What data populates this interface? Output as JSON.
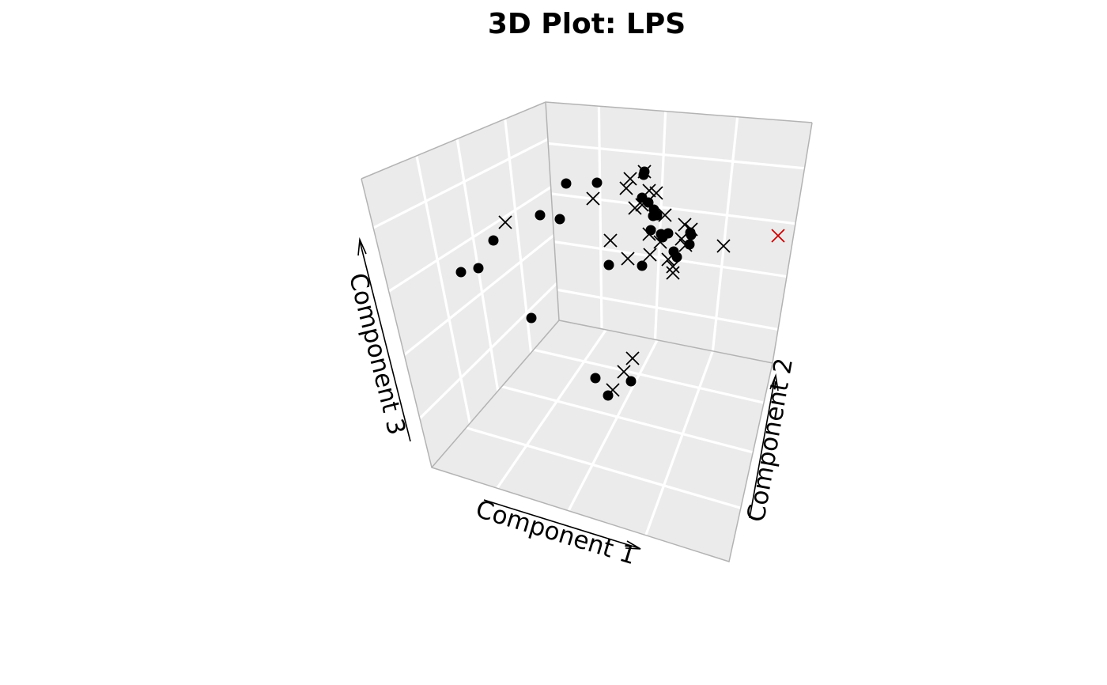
{
  "chart_data": {
    "type": "scatter",
    "projection": "3d",
    "title": "3D Plot: LPS",
    "xlabel": "Component 1",
    "ylabel": "Component 2",
    "zlabel": "Component 3",
    "grid": true,
    "colors": {
      "pane": "#ebebeb",
      "grid": "#ffffff",
      "circle": "#000000",
      "cross": "#000000",
      "highlight": "#cc0000"
    },
    "series": [
      {
        "marker": "circle",
        "color": "#000000",
        "points": [
          [
            716,
            232
          ],
          [
            755,
            231
          ],
          [
            683,
            272
          ],
          [
            708,
            277
          ],
          [
            624,
            304
          ],
          [
            583,
            344
          ],
          [
            605,
            339
          ],
          [
            672,
            402
          ],
          [
            770,
            335
          ],
          [
            812,
            336
          ],
          [
            815,
            217
          ],
          [
            814,
            221
          ],
          [
            812,
            250
          ],
          [
            820,
            256
          ],
          [
            827,
            265
          ],
          [
            826,
            273
          ],
          [
            831,
            272
          ],
          [
            823,
            291
          ],
          [
            836,
            296
          ],
          [
            845,
            295
          ],
          [
            838,
            300
          ],
          [
            852,
            318
          ],
          [
            856,
            325
          ],
          [
            873,
            294
          ],
          [
            874,
            297
          ],
          [
            872,
            309
          ],
          [
            753,
            478
          ],
          [
            769,
            500
          ],
          [
            798,
            482
          ]
        ]
      },
      {
        "marker": "cross",
        "color": "#000000",
        "points": [
          [
            639,
            281
          ],
          [
            750,
            251
          ],
          [
            797,
            226
          ],
          [
            792,
            238
          ],
          [
            815,
            217
          ],
          [
            821,
            241
          ],
          [
            830,
            244
          ],
          [
            803,
            263
          ],
          [
            812,
            259
          ],
          [
            841,
            272
          ],
          [
            772,
            304
          ],
          [
            794,
            327
          ],
          [
            822,
            322
          ],
          [
            821,
            296
          ],
          [
            835,
            306
          ],
          [
            851,
            337
          ],
          [
            851,
            345
          ],
          [
            845,
            328
          ],
          [
            862,
            302
          ],
          [
            866,
            284
          ],
          [
            874,
            290
          ],
          [
            867,
            310
          ],
          [
            915,
            311
          ],
          [
            800,
            453
          ],
          [
            789,
            470
          ],
          [
            775,
            493
          ]
        ]
      },
      {
        "marker": "cross",
        "color": "#cc0000",
        "points": [
          [
            984,
            298
          ]
        ]
      }
    ]
  }
}
